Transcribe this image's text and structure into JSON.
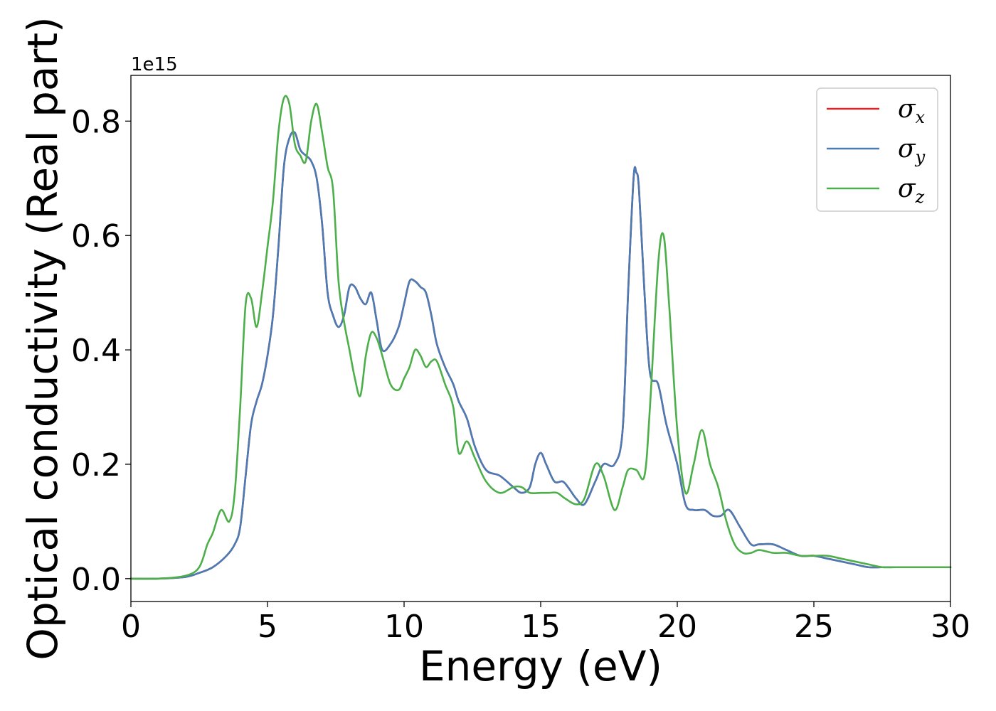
{
  "chart_data": {
    "type": "line",
    "title": "",
    "xlabel": "Energy (eV)",
    "ylabel": "Optical conductivity (Real part)",
    "y_offset_label": "1e15",
    "y_scale_factor": 1000000000000000.0,
    "xlim": [
      0,
      30
    ],
    "ylim": [
      -0.04,
      0.88
    ],
    "x_ticks": [
      0,
      5,
      10,
      15,
      20,
      25,
      30
    ],
    "x_tick_labels": [
      "0",
      "5",
      "10",
      "15",
      "20",
      "25",
      "30"
    ],
    "y_ticks": [
      0.0,
      0.2,
      0.4,
      0.6,
      0.8
    ],
    "y_tick_labels": [
      "0.0",
      "0.2",
      "0.4",
      "0.6",
      "0.8"
    ],
    "grid": false,
    "legend_position": "top-right",
    "series": [
      {
        "name": "σx",
        "symbol": "σ",
        "subscript": "x",
        "color": "#d62728",
        "x": [
          0,
          1,
          2,
          2.5,
          3,
          3.5,
          3.8,
          4.0,
          4.2,
          4.4,
          4.6,
          4.8,
          5.0,
          5.2,
          5.4,
          5.6,
          5.8,
          6.0,
          6.2,
          6.4,
          6.6,
          6.8,
          7.0,
          7.2,
          7.4,
          7.6,
          7.8,
          8.0,
          8.2,
          8.4,
          8.6,
          8.8,
          9.0,
          9.2,
          9.5,
          9.8,
          10.0,
          10.2,
          10.4,
          10.6,
          10.8,
          11.0,
          11.2,
          11.5,
          11.8,
          12.0,
          12.3,
          12.6,
          13.0,
          13.5,
          14.0,
          14.3,
          14.6,
          14.8,
          15.0,
          15.2,
          15.5,
          15.8,
          16.0,
          16.3,
          16.6,
          17.0,
          17.3,
          17.7,
          18.0,
          18.2,
          18.4,
          18.5,
          18.6,
          18.8,
          19.0,
          19.3,
          19.6,
          20.0,
          20.3,
          20.6,
          21.0,
          21.3,
          21.6,
          21.9,
          22.3,
          22.7,
          23.0,
          23.5,
          24.0,
          24.5,
          25.0,
          25.5,
          26.0,
          26.5,
          27.0,
          27.5,
          28.0,
          28.5,
          29.0,
          29.5,
          30.0
        ],
        "values": [
          0,
          0,
          0.003,
          0.01,
          0.02,
          0.04,
          0.06,
          0.09,
          0.18,
          0.27,
          0.31,
          0.34,
          0.39,
          0.46,
          0.58,
          0.72,
          0.77,
          0.78,
          0.75,
          0.74,
          0.73,
          0.7,
          0.62,
          0.5,
          0.46,
          0.44,
          0.46,
          0.51,
          0.51,
          0.49,
          0.48,
          0.5,
          0.45,
          0.4,
          0.41,
          0.44,
          0.48,
          0.52,
          0.52,
          0.51,
          0.5,
          0.46,
          0.41,
          0.37,
          0.34,
          0.31,
          0.28,
          0.23,
          0.19,
          0.18,
          0.16,
          0.15,
          0.16,
          0.2,
          0.22,
          0.2,
          0.17,
          0.17,
          0.16,
          0.14,
          0.13,
          0.17,
          0.2,
          0.2,
          0.26,
          0.5,
          0.7,
          0.71,
          0.68,
          0.5,
          0.36,
          0.34,
          0.27,
          0.2,
          0.13,
          0.12,
          0.12,
          0.11,
          0.11,
          0.12,
          0.09,
          0.06,
          0.06,
          0.06,
          0.05,
          0.04,
          0.04,
          0.035,
          0.03,
          0.025,
          0.02,
          0.02,
          0.02,
          0.02,
          0.02,
          0.02,
          0.02
        ]
      },
      {
        "name": "σy",
        "symbol": "σ",
        "subscript": "y",
        "color": "#4a7bb5",
        "x": [
          0,
          1,
          2,
          2.5,
          3,
          3.5,
          3.8,
          4.0,
          4.2,
          4.4,
          4.6,
          4.8,
          5.0,
          5.2,
          5.4,
          5.6,
          5.8,
          6.0,
          6.2,
          6.4,
          6.6,
          6.8,
          7.0,
          7.2,
          7.4,
          7.6,
          7.8,
          8.0,
          8.2,
          8.4,
          8.6,
          8.8,
          9.0,
          9.2,
          9.5,
          9.8,
          10.0,
          10.2,
          10.4,
          10.6,
          10.8,
          11.0,
          11.2,
          11.5,
          11.8,
          12.0,
          12.3,
          12.6,
          13.0,
          13.5,
          14.0,
          14.3,
          14.6,
          14.8,
          15.0,
          15.2,
          15.5,
          15.8,
          16.0,
          16.3,
          16.6,
          17.0,
          17.3,
          17.7,
          18.0,
          18.2,
          18.4,
          18.5,
          18.6,
          18.8,
          19.0,
          19.3,
          19.6,
          20.0,
          20.3,
          20.6,
          21.0,
          21.3,
          21.6,
          21.9,
          22.3,
          22.7,
          23.0,
          23.5,
          24.0,
          24.5,
          25.0,
          25.5,
          26.0,
          26.5,
          27.0,
          27.5,
          28.0,
          28.5,
          29.0,
          29.5,
          30.0
        ],
        "values": [
          0,
          0,
          0.003,
          0.01,
          0.02,
          0.04,
          0.06,
          0.09,
          0.18,
          0.27,
          0.31,
          0.34,
          0.39,
          0.46,
          0.58,
          0.72,
          0.77,
          0.78,
          0.75,
          0.74,
          0.73,
          0.7,
          0.62,
          0.5,
          0.46,
          0.44,
          0.46,
          0.51,
          0.51,
          0.49,
          0.48,
          0.5,
          0.45,
          0.4,
          0.41,
          0.44,
          0.48,
          0.52,
          0.52,
          0.51,
          0.5,
          0.46,
          0.41,
          0.37,
          0.34,
          0.31,
          0.28,
          0.23,
          0.19,
          0.18,
          0.16,
          0.15,
          0.16,
          0.2,
          0.22,
          0.2,
          0.17,
          0.17,
          0.16,
          0.14,
          0.13,
          0.17,
          0.2,
          0.2,
          0.26,
          0.5,
          0.7,
          0.71,
          0.68,
          0.5,
          0.36,
          0.34,
          0.27,
          0.2,
          0.13,
          0.12,
          0.12,
          0.11,
          0.11,
          0.12,
          0.09,
          0.06,
          0.06,
          0.06,
          0.05,
          0.04,
          0.04,
          0.035,
          0.03,
          0.025,
          0.02,
          0.02,
          0.02,
          0.02,
          0.02,
          0.02,
          0.02
        ]
      },
      {
        "name": "σz",
        "symbol": "σ",
        "subscript": "z",
        "color": "#4daf4a",
        "x": [
          0,
          1,
          2,
          2.5,
          2.8,
          3.0,
          3.3,
          3.6,
          3.8,
          4.0,
          4.2,
          4.4,
          4.6,
          4.8,
          5.0,
          5.2,
          5.4,
          5.6,
          5.8,
          6.0,
          6.2,
          6.4,
          6.6,
          6.8,
          7.0,
          7.2,
          7.4,
          7.6,
          7.8,
          8.0,
          8.2,
          8.4,
          8.6,
          8.8,
          9.0,
          9.2,
          9.5,
          9.8,
          10.0,
          10.2,
          10.4,
          10.6,
          10.8,
          11.0,
          11.2,
          11.5,
          11.8,
          12.0,
          12.3,
          12.6,
          13.0,
          13.5,
          14.0,
          14.3,
          14.6,
          15.0,
          15.3,
          15.6,
          15.9,
          16.3,
          16.6,
          17.0,
          17.3,
          17.7,
          18.0,
          18.2,
          18.5,
          18.8,
          19.0,
          19.3,
          19.5,
          19.7,
          20.0,
          20.3,
          20.6,
          20.9,
          21.2,
          21.5,
          21.8,
          22.1,
          22.4,
          22.7,
          23.0,
          23.5,
          24.0,
          24.5,
          25.0,
          25.5,
          26.0,
          26.5,
          27.0,
          27.5,
          28.0,
          28.5,
          29.0,
          29.5,
          30.0
        ],
        "values": [
          0,
          0,
          0.005,
          0.02,
          0.06,
          0.08,
          0.12,
          0.1,
          0.15,
          0.3,
          0.48,
          0.49,
          0.44,
          0.5,
          0.58,
          0.66,
          0.78,
          0.84,
          0.83,
          0.76,
          0.74,
          0.73,
          0.8,
          0.83,
          0.78,
          0.72,
          0.68,
          0.52,
          0.45,
          0.4,
          0.35,
          0.32,
          0.39,
          0.43,
          0.42,
          0.39,
          0.34,
          0.33,
          0.35,
          0.37,
          0.4,
          0.39,
          0.37,
          0.38,
          0.38,
          0.34,
          0.3,
          0.22,
          0.24,
          0.21,
          0.17,
          0.15,
          0.16,
          0.16,
          0.15,
          0.15,
          0.15,
          0.15,
          0.14,
          0.13,
          0.14,
          0.2,
          0.18,
          0.12,
          0.16,
          0.19,
          0.19,
          0.18,
          0.3,
          0.55,
          0.6,
          0.48,
          0.26,
          0.15,
          0.2,
          0.26,
          0.2,
          0.16,
          0.1,
          0.06,
          0.045,
          0.045,
          0.05,
          0.045,
          0.045,
          0.04,
          0.04,
          0.04,
          0.035,
          0.03,
          0.025,
          0.02,
          0.02,
          0.02,
          0.02,
          0.02,
          0.02
        ]
      }
    ]
  }
}
